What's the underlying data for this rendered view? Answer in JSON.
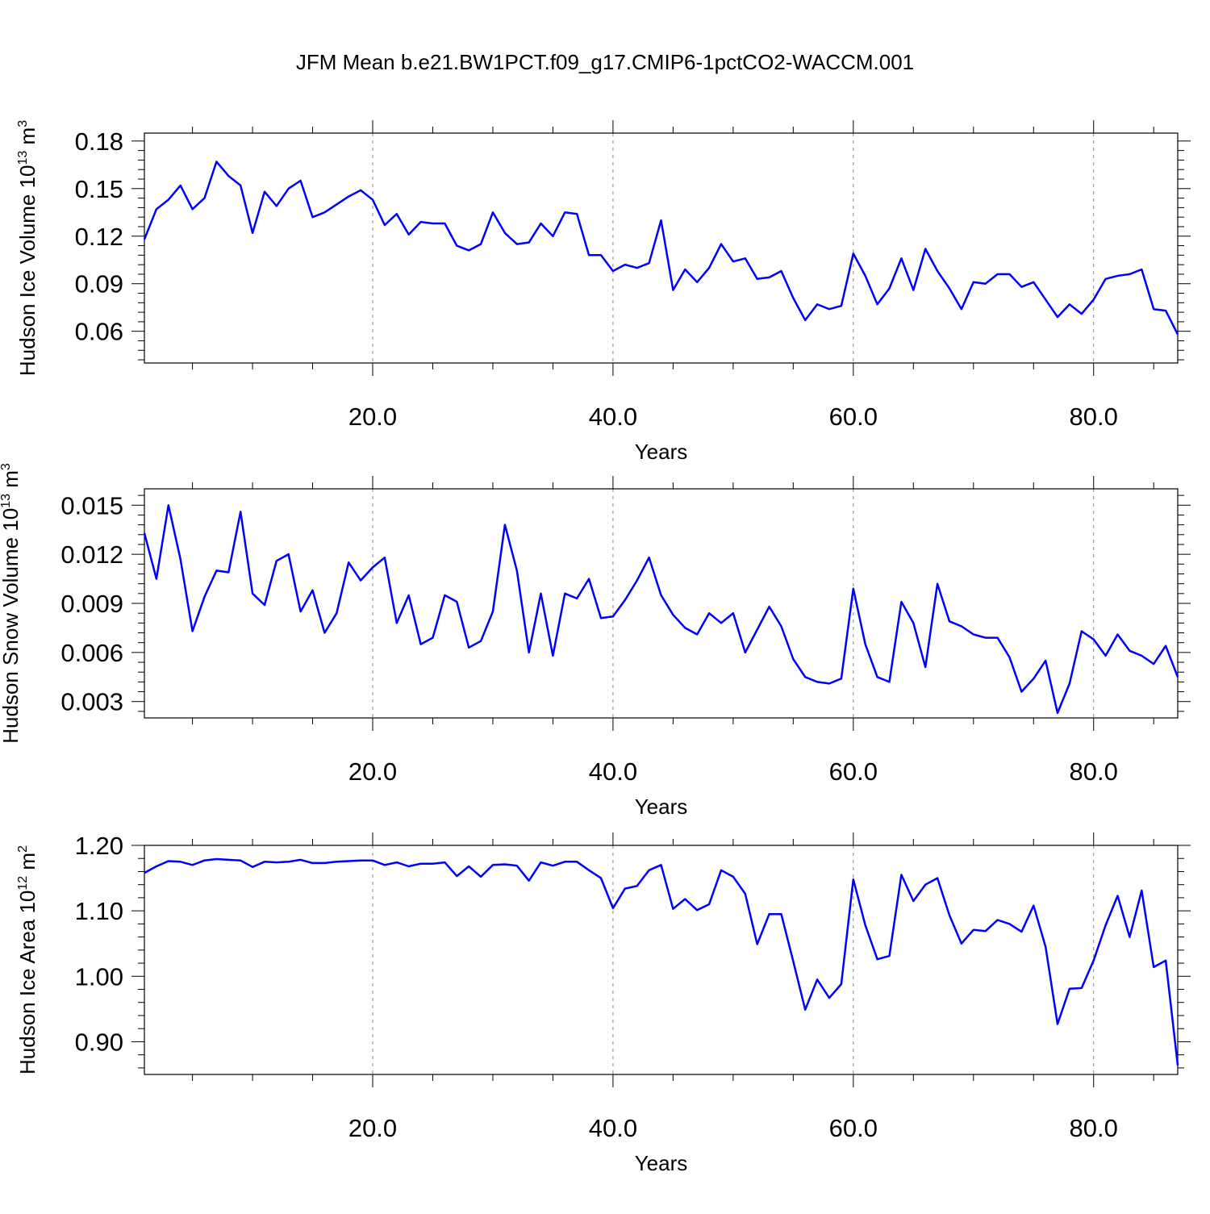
{
  "title": "JFM Mean b.e21.BW1PCT.f09_g17.CMIP6-1pctCO2-WACCM.001",
  "colors": {
    "line": "#0000ff",
    "axis": "#000000",
    "grid": "#888888",
    "background": "#ffffff"
  },
  "chart_data": [
    {
      "type": "line",
      "ylabel": "Hudson Ice Volume 10",
      "ylabel_exp": "13",
      "ylabel_unit": " m",
      "ylabel_unit_exp": "3",
      "xlabel": "Years",
      "xlim": [
        1,
        87
      ],
      "ylim": [
        0.04,
        0.185
      ],
      "xticks": [
        20,
        40,
        60,
        80
      ],
      "xtick_labels": [
        "20.0",
        "40.0",
        "60.0",
        "80.0"
      ],
      "yticks": [
        0.06,
        0.09,
        0.12,
        0.15,
        0.18
      ],
      "ytick_labels": [
        "0.06",
        "0.09",
        "0.12",
        "0.15",
        "0.18"
      ],
      "grid": "vertical dashed at major x ticks",
      "series": [
        {
          "x": [
            1,
            2,
            3,
            4,
            5,
            6,
            7,
            8,
            9,
            10,
            11,
            12,
            13,
            14,
            15,
            16,
            17,
            18,
            19,
            20,
            21,
            22,
            23,
            24,
            25,
            26,
            27,
            28,
            29,
            30,
            31,
            32,
            33,
            34,
            35,
            36,
            37,
            38,
            39,
            40,
            41,
            42,
            43,
            44,
            45,
            46,
            47,
            48,
            49,
            50,
            51,
            52,
            53,
            54,
            55,
            56,
            57,
            58,
            59,
            60,
            61,
            62,
            63,
            64,
            65,
            66,
            67,
            68,
            69,
            70,
            71,
            72,
            73,
            74,
            75,
            76,
            77,
            78,
            79,
            80,
            81,
            82,
            83,
            84,
            85,
            86,
            87
          ],
          "values": [
            0.118,
            0.137,
            0.143,
            0.152,
            0.137,
            0.144,
            0.167,
            0.158,
            0.152,
            0.122,
            0.148,
            0.139,
            0.15,
            0.155,
            0.132,
            0.135,
            0.14,
            0.145,
            0.149,
            0.143,
            0.127,
            0.134,
            0.121,
            0.129,
            0.128,
            0.128,
            0.114,
            0.111,
            0.115,
            0.135,
            0.122,
            0.115,
            0.116,
            0.128,
            0.12,
            0.135,
            0.134,
            0.108,
            0.108,
            0.098,
            0.102,
            0.1,
            0.103,
            0.13,
            0.086,
            0.099,
            0.091,
            0.1,
            0.115,
            0.104,
            0.106,
            0.093,
            0.094,
            0.098,
            0.081,
            0.067,
            0.077,
            0.074,
            0.076,
            0.109,
            0.095,
            0.077,
            0.087,
            0.106,
            0.086,
            0.112,
            0.098,
            0.087,
            0.074,
            0.091,
            0.09,
            0.096,
            0.096,
            0.088,
            0.091,
            0.08,
            0.069,
            0.077,
            0.071,
            0.08,
            0.093,
            0.095,
            0.096,
            0.099,
            0.074,
            0.073,
            0.058
          ]
        }
      ]
    },
    {
      "type": "line",
      "ylabel": "Hudson Snow Volume 10",
      "ylabel_exp": "13",
      "ylabel_unit": " m",
      "ylabel_unit_exp": "3",
      "xlabel": "Years",
      "xlim": [
        1,
        87
      ],
      "ylim": [
        0.002,
        0.016
      ],
      "xticks": [
        20,
        40,
        60,
        80
      ],
      "xtick_labels": [
        "20.0",
        "40.0",
        "60.0",
        "80.0"
      ],
      "yticks": [
        0.003,
        0.006,
        0.009,
        0.012,
        0.015
      ],
      "ytick_labels": [
        "0.003",
        "0.006",
        "0.009",
        "0.012",
        "0.015"
      ],
      "grid": "vertical dashed at major x ticks",
      "series": [
        {
          "x": [
            1,
            2,
            3,
            4,
            5,
            6,
            7,
            8,
            9,
            10,
            11,
            12,
            13,
            14,
            15,
            16,
            17,
            18,
            19,
            20,
            21,
            22,
            23,
            24,
            25,
            26,
            27,
            28,
            29,
            30,
            31,
            32,
            33,
            34,
            35,
            36,
            37,
            38,
            39,
            40,
            41,
            42,
            43,
            44,
            45,
            46,
            47,
            48,
            49,
            50,
            51,
            52,
            53,
            54,
            55,
            56,
            57,
            58,
            59,
            60,
            61,
            62,
            63,
            64,
            65,
            66,
            67,
            68,
            69,
            70,
            71,
            72,
            73,
            74,
            75,
            76,
            77,
            78,
            79,
            80,
            81,
            82,
            83,
            84,
            85,
            86,
            87
          ],
          "values": [
            0.0133,
            0.0105,
            0.015,
            0.0117,
            0.0073,
            0.0094,
            0.011,
            0.0109,
            0.0146,
            0.0096,
            0.0089,
            0.0116,
            0.012,
            0.0085,
            0.0098,
            0.0072,
            0.0084,
            0.0115,
            0.0104,
            0.0112,
            0.0118,
            0.0078,
            0.0095,
            0.0065,
            0.0069,
            0.0095,
            0.0091,
            0.0063,
            0.0067,
            0.0085,
            0.0138,
            0.011,
            0.006,
            0.0096,
            0.0058,
            0.0096,
            0.0093,
            0.0105,
            0.0081,
            0.0082,
            0.0092,
            0.0104,
            0.0118,
            0.0095,
            0.0083,
            0.0075,
            0.0071,
            0.0084,
            0.0078,
            0.0084,
            0.006,
            0.0074,
            0.0088,
            0.0076,
            0.0056,
            0.0045,
            0.0042,
            0.0041,
            0.0044,
            0.0099,
            0.0065,
            0.0045,
            0.0042,
            0.0091,
            0.0078,
            0.0051,
            0.0102,
            0.0079,
            0.0076,
            0.0071,
            0.0069,
            0.0069,
            0.0057,
            0.0036,
            0.0044,
            0.0055,
            0.0023,
            0.0041,
            0.0073,
            0.0068,
            0.0058,
            0.0071,
            0.0061,
            0.0058,
            0.0053,
            0.0064,
            0.0045
          ]
        }
      ]
    },
    {
      "type": "line",
      "ylabel": "Hudson Ice Area 10",
      "ylabel_exp": "12",
      "ylabel_unit": " m",
      "ylabel_unit_exp": "2",
      "xlabel": "Years",
      "xlim": [
        1,
        87
      ],
      "ylim": [
        0.85,
        1.2
      ],
      "xticks": [
        20,
        40,
        60,
        80
      ],
      "xtick_labels": [
        "20.0",
        "40.0",
        "60.0",
        "80.0"
      ],
      "yticks": [
        0.9,
        1.0,
        1.1,
        1.2
      ],
      "ytick_labels": [
        "0.90",
        "1.00",
        "1.10",
        "1.20"
      ],
      "grid": "vertical dashed at major x ticks",
      "series": [
        {
          "x": [
            1,
            2,
            3,
            4,
            5,
            6,
            7,
            8,
            9,
            10,
            11,
            12,
            13,
            14,
            15,
            16,
            17,
            18,
            19,
            20,
            21,
            22,
            23,
            24,
            25,
            26,
            27,
            28,
            29,
            30,
            31,
            32,
            33,
            34,
            35,
            36,
            37,
            38,
            39,
            40,
            41,
            42,
            43,
            44,
            45,
            46,
            47,
            48,
            49,
            50,
            51,
            52,
            53,
            54,
            55,
            56,
            57,
            58,
            59,
            60,
            61,
            62,
            63,
            64,
            65,
            66,
            67,
            68,
            69,
            70,
            71,
            72,
            73,
            74,
            75,
            76,
            77,
            78,
            79,
            80,
            81,
            82,
            83,
            84,
            85,
            86,
            87
          ],
          "values": [
            1.158,
            1.168,
            1.176,
            1.175,
            1.17,
            1.177,
            1.179,
            1.178,
            1.177,
            1.167,
            1.175,
            1.174,
            1.175,
            1.178,
            1.173,
            1.173,
            1.175,
            1.176,
            1.177,
            1.177,
            1.17,
            1.174,
            1.168,
            1.172,
            1.172,
            1.174,
            1.153,
            1.168,
            1.152,
            1.17,
            1.171,
            1.169,
            1.146,
            1.174,
            1.169,
            1.175,
            1.175,
            1.162,
            1.15,
            1.104,
            1.134,
            1.138,
            1.162,
            1.17,
            1.103,
            1.118,
            1.101,
            1.11,
            1.162,
            1.152,
            1.126,
            1.049,
            1.095,
            1.095,
            1.023,
            0.949,
            0.995,
            0.967,
            0.988,
            1.148,
            1.078,
            1.026,
            1.031,
            1.155,
            1.115,
            1.14,
            1.15,
            1.093,
            1.05,
            1.071,
            1.069,
            1.086,
            1.08,
            1.068,
            1.108,
            1.045,
            0.927,
            0.981,
            0.982,
            1.024,
            1.078,
            1.123,
            1.06,
            1.131,
            1.014,
            1.024,
            0.864
          ]
        }
      ]
    }
  ]
}
